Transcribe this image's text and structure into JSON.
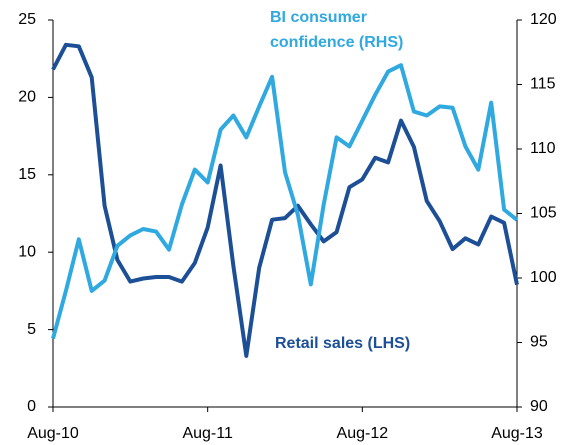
{
  "chart_data": {
    "type": "line",
    "annotations": [
      "BI consumer",
      "confidence (RHS)",
      "Retail sales (LHS)"
    ],
    "categories": [
      "Aug-10",
      null,
      null,
      null,
      null,
      null,
      null,
      null,
      null,
      null,
      null,
      null,
      "Aug-11",
      null,
      null,
      null,
      null,
      null,
      null,
      null,
      null,
      null,
      null,
      null,
      "Aug-12",
      null,
      null,
      null,
      null,
      null,
      null,
      null,
      null,
      null,
      null,
      null,
      "Aug-13"
    ],
    "ylim": [
      0,
      25
    ],
    "yticks": [
      0,
      5,
      10,
      15,
      20,
      25
    ],
    "y2lim": [
      90,
      120
    ],
    "y2ticks": [
      90,
      95,
      100,
      105,
      110,
      115,
      120
    ],
    "series": [
      {
        "name": "Retail sales (LHS)",
        "color": "#1c4f96",
        "axis": "y",
        "values": [
          21.8,
          23.4,
          23.3,
          21.3,
          13.0,
          9.5,
          8.1,
          8.3,
          8.4,
          8.4,
          8.1,
          9.3,
          11.6,
          15.6,
          9.1,
          3.3,
          9.0,
          12.1,
          12.2,
          13.0,
          11.8,
          10.7,
          11.3,
          14.2,
          14.7,
          16.1,
          15.8,
          18.5,
          16.8,
          13.3,
          12.0,
          10.2,
          10.9,
          10.5,
          12.3,
          11.9,
          7.9
        ]
      },
      {
        "name": "BI consumer confidence (RHS)",
        "color": "#2fa9e0",
        "axis": "y2",
        "values": [
          95.3,
          99.0,
          103.0,
          99.0,
          99.8,
          102.5,
          103.3,
          103.8,
          103.6,
          102.2,
          105.7,
          108.4,
          107.4,
          111.5,
          112.6,
          110.9,
          113.3,
          115.6,
          108.2,
          104.9,
          99.5,
          105.7,
          110.9,
          110.2,
          112.2,
          114.2,
          116.0,
          116.5,
          112.9,
          112.6,
          113.3,
          113.2,
          110.2,
          108.4,
          113.6,
          105.3,
          104.5
        ]
      }
    ]
  }
}
